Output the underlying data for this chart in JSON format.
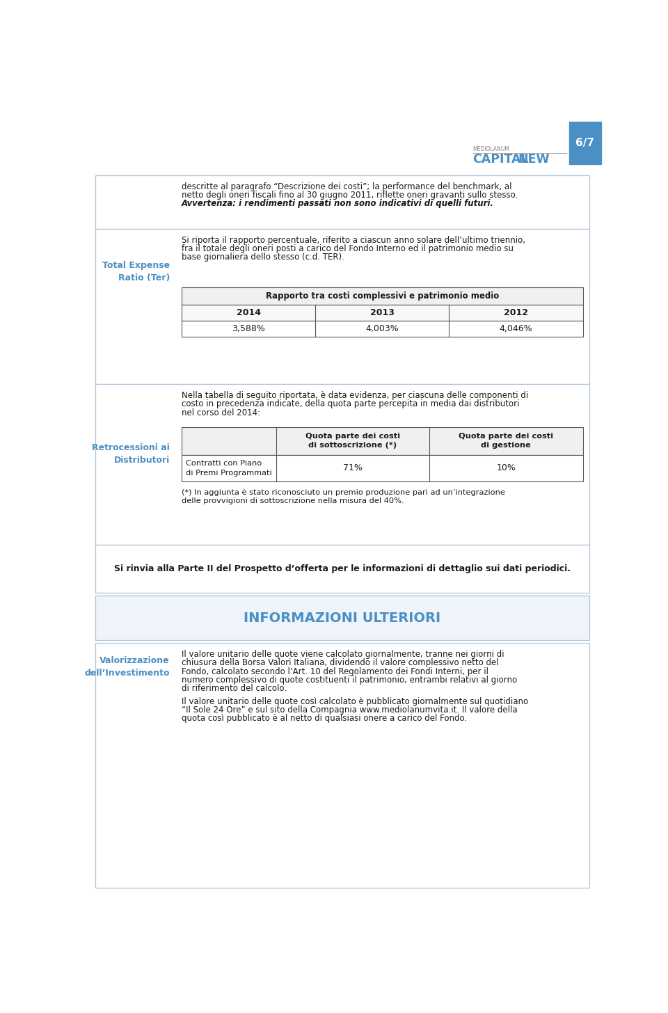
{
  "page_number": "6/7",
  "logo_text_mediolanum": "MEDIOLANUM",
  "logo_text_capital": "CAPITAL",
  "logo_text_new": "NEW",
  "header_bar_color": "#4a90c4",
  "accent_color": "#4a90c4",
  "bg_color": "#ffffff",
  "border_color": "#b0c4d8",
  "text_color": "#1a1a1a",
  "blue_label_color": "#4a90c4",
  "section1_label": "Total Expense\nRatio (Ter)",
  "table1_header": "Rapporto tra costi complessivi e patrimonio medio",
  "table1_years": [
    "2014",
    "2013",
    "2012"
  ],
  "table1_values": [
    "3,588%",
    "4,003%",
    "4,046%"
  ],
  "section2_label": "Retrocessioni ai\nDistributori",
  "table2_col2_header": "Quota parte dei costi\ndi sottoscrizione (*)",
  "table2_col3_header": "Quota parte dei costi\ndi gestione",
  "table2_row1_col1": "Contratti con Piano\ndi Premi Programmati",
  "table2_row1_col2": "71%",
  "table2_row1_col3": "10%",
  "footnote_line1": "(*) In aggiunta è stato riconosciuto un premio produzione pari ad un’integrazione",
  "footnote_line2": "delle provvigioni di sottoscrizione nella misura del 40%.",
  "section3_text": "Si rinvia alla Parte II del Prospetto d’offerta per le informazioni di dettaglio sui dati periodici.",
  "section4_header": "INFORMAZIONI ULTERIORI",
  "section5_label": "Valorizzazione\ndell’Investimento",
  "top_line1": "descritte al paragrafo “Descrizione dei costi”; la performance del benchmark, al",
  "top_line2": "netto degli oneri fiscali fino al 30 giugno 2011, riflette oneri gravanti sullo stesso.",
  "top_line3": "Avvertenza: i rendimenti passati non sono indicativi di quelli futuri.",
  "sec1_line1": "Si riporta il rapporto percentuale, riferito a ciascun anno solare dell’ultimo triennio,",
  "sec1_line2": "fra il totale degli oneri posti a carico del Fondo Interno ed il patrimonio medio su",
  "sec1_line3": "base giornaliera dello stesso (c.d. TER).",
  "sec2_line1": "Nella tabella di seguito riportata, è data evidenza, per ciascuna delle componenti di",
  "sec2_line2": "costo in precedenza indicate, della quota parte percepita in media dai distributori",
  "sec2_line3": "nel corso del 2014:",
  "sec5_line1": "Il valore unitario delle quote viene calcolato giornalmente, tranne nei giorni di",
  "sec5_line2": "chiusura della Borsa Valori Italiana, dividendo il valore complessivo netto del",
  "sec5_line3": "Fondo, calcolato secondo l’Art. 10 del Regolamento dei Fondi Interni, per il",
  "sec5_line4": "numero complessivo di quote costituenti il patrimonio, entrambi relativi al giorno",
  "sec5_line5": "di riferimento del calcolo.",
  "sec5_line6": "Il valore unitario delle quote così calcolato è pubblicato giornalmente sul quotidiano",
  "sec5_line7": "“Il Sole 24 Ore” e sul sito della Compagnia www.mediolanumvita.it. Il valore della",
  "sec5_line8": "quota così pubblicato è al netto di qualsiasi onere a carico del Fondo."
}
